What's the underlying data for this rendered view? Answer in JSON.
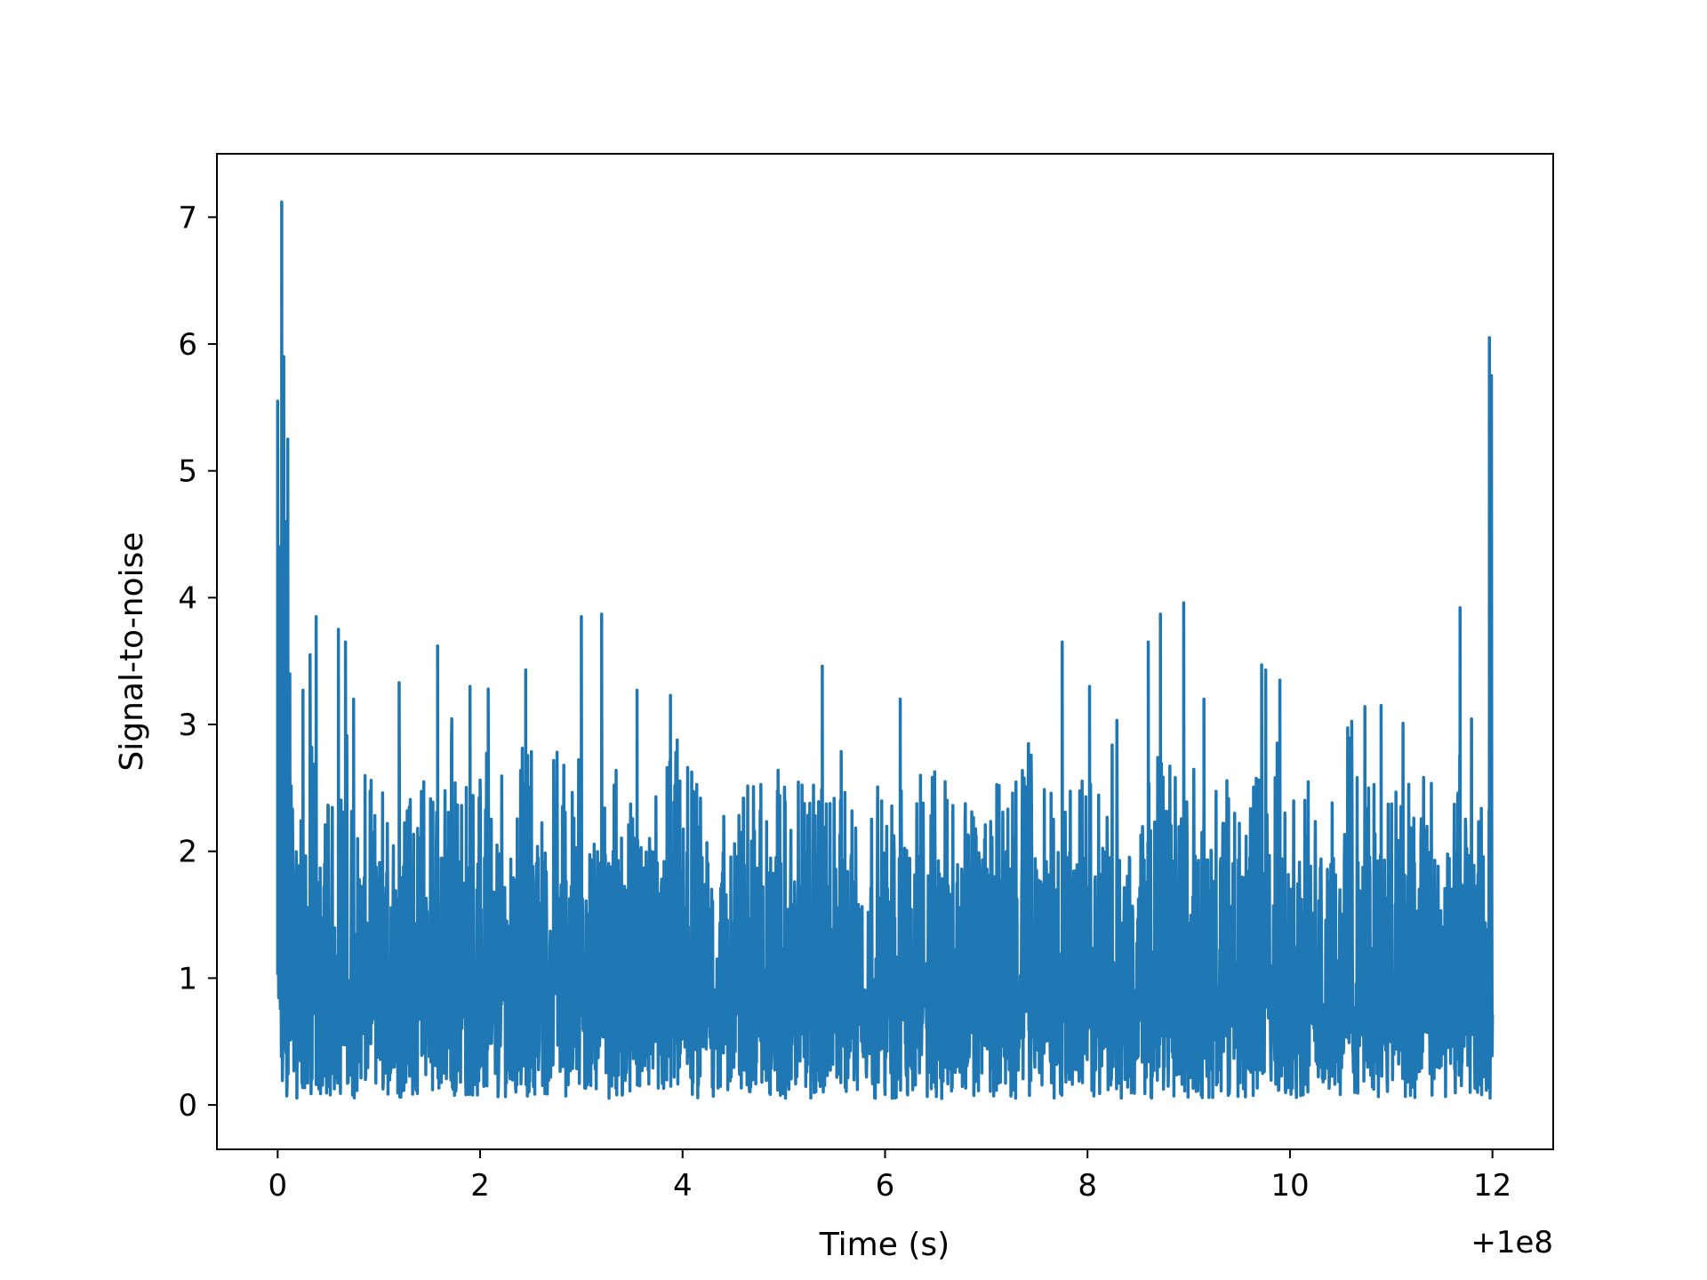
{
  "chart_data": {
    "type": "line",
    "title": "",
    "xlabel": "Time (s)",
    "ylabel": "Signal-to-noise",
    "x_offset_label": "+1e8",
    "xlim": [
      -0.6,
      12.6
    ],
    "ylim": [
      -0.35,
      7.5
    ],
    "x_ticks": [
      0,
      2,
      4,
      6,
      8,
      10,
      12
    ],
    "y_ticks": [
      0,
      1,
      2,
      3,
      4,
      5,
      6,
      7
    ],
    "grid": false,
    "legend": "none",
    "series": [
      {
        "color": "#1f77b4",
        "x_range": [
          0,
          12
        ],
        "noise_floor": 0.05,
        "typical_peak": 2.6,
        "peaks": [
          {
            "x": 0.0,
            "y": 5.55
          },
          {
            "x": 0.02,
            "y": 4.4
          },
          {
            "x": 0.04,
            "y": 7.12
          },
          {
            "x": 0.06,
            "y": 5.9
          },
          {
            "x": 0.08,
            "y": 4.6
          },
          {
            "x": 0.1,
            "y": 5.25
          },
          {
            "x": 0.12,
            "y": 3.4
          },
          {
            "x": 0.25,
            "y": 3.27
          },
          {
            "x": 0.32,
            "y": 3.55
          },
          {
            "x": 0.38,
            "y": 3.85
          },
          {
            "x": 0.6,
            "y": 3.75
          },
          {
            "x": 0.67,
            "y": 3.65
          },
          {
            "x": 0.75,
            "y": 3.2
          },
          {
            "x": 1.2,
            "y": 3.33
          },
          {
            "x": 1.58,
            "y": 3.62
          },
          {
            "x": 1.9,
            "y": 3.3
          },
          {
            "x": 2.08,
            "y": 3.28
          },
          {
            "x": 2.45,
            "y": 3.43
          },
          {
            "x": 3.0,
            "y": 3.85
          },
          {
            "x": 3.2,
            "y": 3.87
          },
          {
            "x": 3.55,
            "y": 3.27
          },
          {
            "x": 3.88,
            "y": 3.23
          },
          {
            "x": 5.38,
            "y": 3.46
          },
          {
            "x": 6.15,
            "y": 3.2
          },
          {
            "x": 7.75,
            "y": 3.65
          },
          {
            "x": 8.02,
            "y": 3.3
          },
          {
            "x": 8.6,
            "y": 3.65
          },
          {
            "x": 8.72,
            "y": 3.87
          },
          {
            "x": 8.95,
            "y": 3.96
          },
          {
            "x": 9.15,
            "y": 3.2
          },
          {
            "x": 9.72,
            "y": 3.47
          },
          {
            "x": 9.76,
            "y": 3.43
          },
          {
            "x": 9.9,
            "y": 3.35
          },
          {
            "x": 10.9,
            "y": 3.15
          },
          {
            "x": 11.68,
            "y": 3.92
          },
          {
            "x": 11.97,
            "y": 6.05
          },
          {
            "x": 11.99,
            "y": 5.75
          }
        ]
      }
    ]
  }
}
